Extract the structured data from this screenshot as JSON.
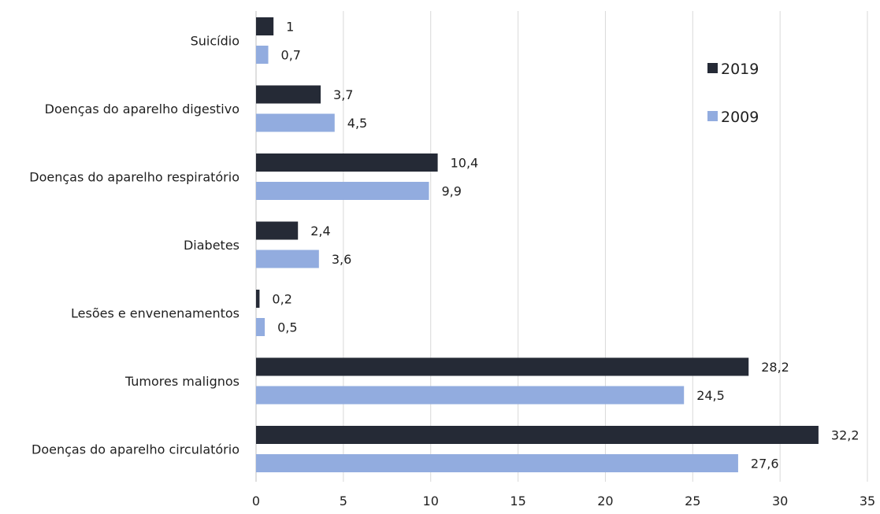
{
  "chart_data": {
    "type": "bar",
    "orientation": "horizontal",
    "title": "",
    "xlabel": "",
    "ylabel": "",
    "categories": [
      "Suicídio",
      "Doenças do aparelho digestivo",
      "Doenças do aparelho respiratório",
      "Diabetes",
      "Lesões e envenenamentos",
      "Tumores malignos",
      "Doenças do aparelho circulatório"
    ],
    "series": [
      {
        "name": "2019",
        "color": "#252a36",
        "values": [
          1,
          3.7,
          10.4,
          2.4,
          0.2,
          28.2,
          32.2
        ],
        "labels": [
          "1",
          "3,7",
          "10,4",
          "2,4",
          "0,2",
          "28,2",
          "32,2"
        ]
      },
      {
        "name": "2009",
        "color": "#92acdf",
        "values": [
          0.7,
          4.5,
          9.9,
          3.6,
          0.5,
          24.5,
          27.6
        ],
        "labels": [
          "0,7",
          "4,5",
          "9,9",
          "3,6",
          "0,5",
          "24,5",
          "27,6"
        ]
      }
    ],
    "xlim": [
      0,
      35
    ],
    "xticks": [
      0,
      5,
      10,
      15,
      20,
      25,
      30,
      35
    ],
    "grid": "vertical",
    "gridline_color": "#d9d9d9",
    "legend_position": "top-right"
  }
}
